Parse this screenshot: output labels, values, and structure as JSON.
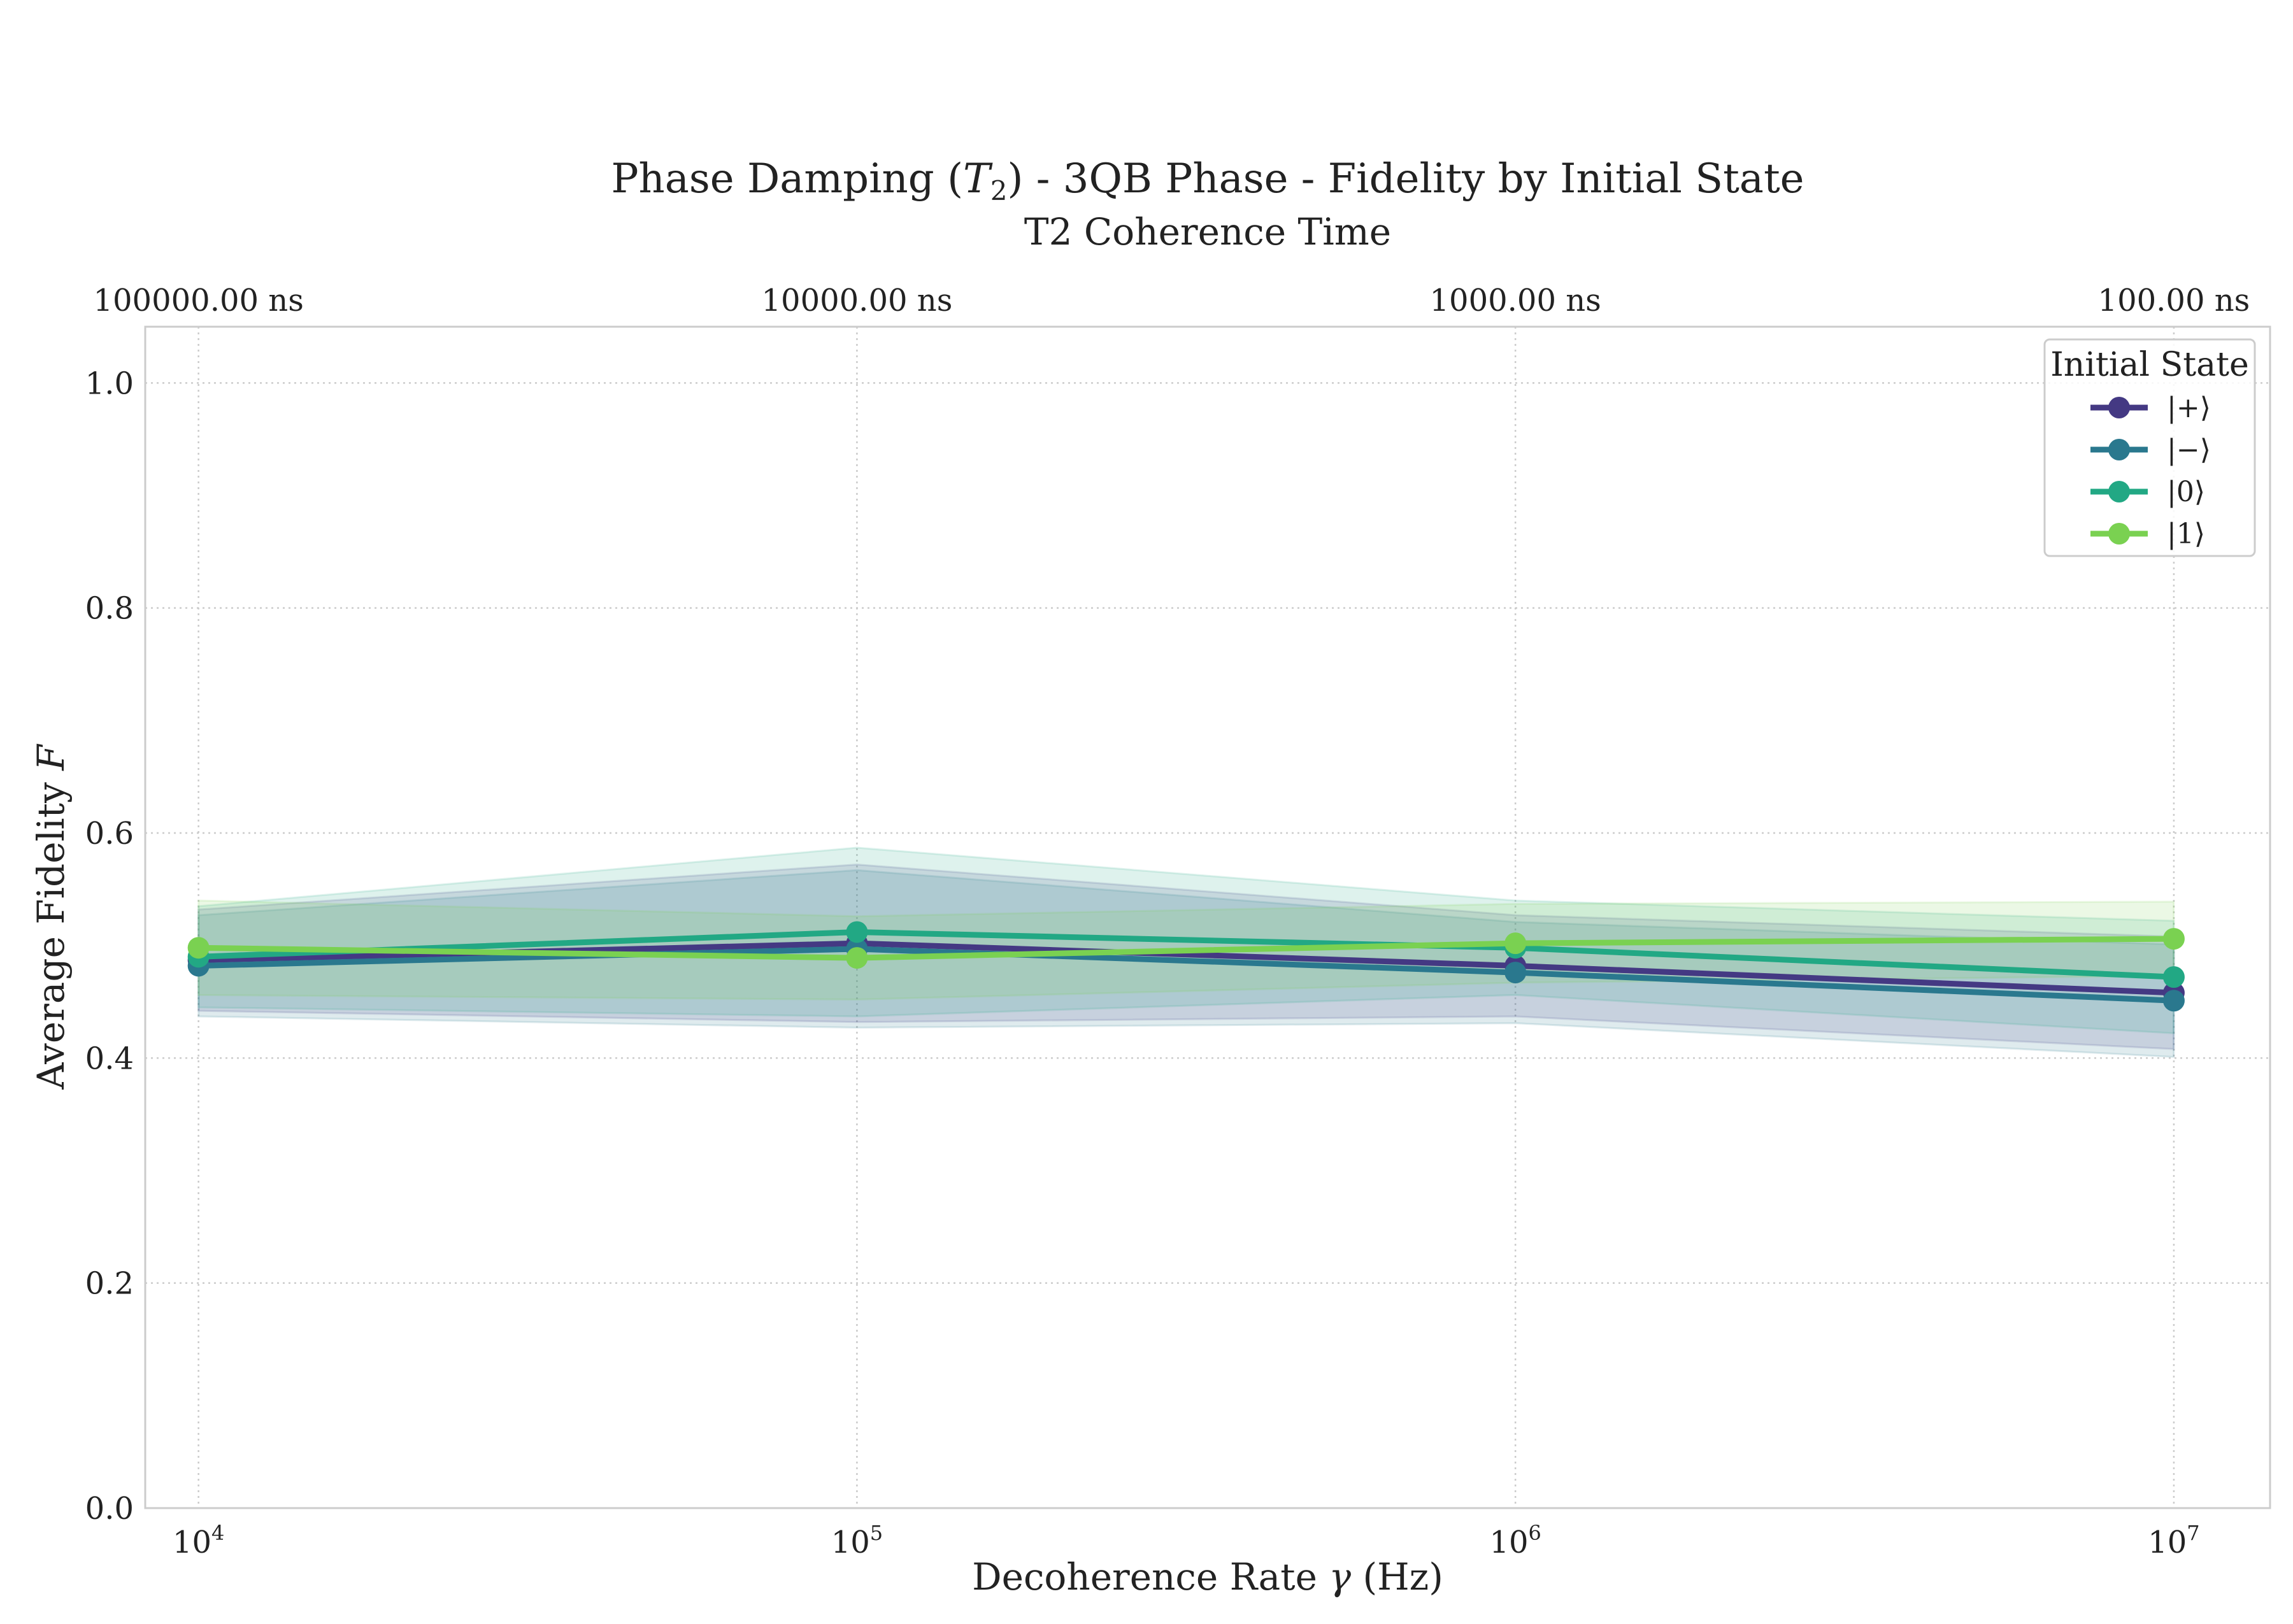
{
  "chart_data": {
    "type": "line",
    "title": "Phase Damping (T₂) - 3QB Phase - Fidelity by Initial State",
    "title_parts": {
      "before": "Phase Damping (",
      "symbol": "T",
      "subscript": "2",
      "after": ") - 3QB Phase - Fidelity by Initial State"
    },
    "secondary_axis_title": "T2 Coherence Time",
    "xlabel": "Decoherence Rate γ (Hz)",
    "xlabel_parts": {
      "before": "Decoherence Rate ",
      "symbol": "γ",
      "after": " (Hz)"
    },
    "ylabel": "Average Fidelity F",
    "ylabel_parts": {
      "before": "Average Fidelity ",
      "symbol": "F"
    },
    "x_scale": "log",
    "x": [
      10000,
      100000,
      1000000,
      10000000
    ],
    "xlim": [
      8300,
      14000000
    ],
    "ylim": [
      0,
      1.05
    ],
    "x_ticks": [
      {
        "base": "10",
        "exp": "4",
        "value": 10000
      },
      {
        "base": "10",
        "exp": "5",
        "value": 100000
      },
      {
        "base": "10",
        "exp": "6",
        "value": 1000000
      },
      {
        "base": "10",
        "exp": "7",
        "value": 10000000
      }
    ],
    "y_ticks": [
      "0.0",
      "0.2",
      "0.4",
      "0.6",
      "0.8",
      "1.0"
    ],
    "top_ticks": [
      "100000.00 ns",
      "10000.00 ns",
      "1000.00 ns",
      "100.00 ns"
    ],
    "grid": true,
    "grid_style": "dotted",
    "legend": {
      "title": "Initial State",
      "placement": "top-right"
    },
    "series": [
      {
        "name": "|+⟩",
        "color": "#443983",
        "values": [
          0.487,
          0.502,
          0.482,
          0.458
        ],
        "lower": [
          0.442,
          0.432,
          0.437,
          0.408
        ],
        "upper": [
          0.532,
          0.572,
          0.527,
          0.508
        ]
      },
      {
        "name": "|−⟩",
        "color": "#2a788e",
        "values": [
          0.482,
          0.497,
          0.476,
          0.451
        ],
        "lower": [
          0.437,
          0.427,
          0.431,
          0.401
        ],
        "upper": [
          0.527,
          0.567,
          0.521,
          0.501
        ]
      },
      {
        "name": "|0⟩",
        "color": "#22a884",
        "values": [
          0.49,
          0.512,
          0.498,
          0.472
        ],
        "lower": [
          0.445,
          0.437,
          0.456,
          0.422
        ],
        "upper": [
          0.535,
          0.587,
          0.54,
          0.522
        ]
      },
      {
        "name": "|1⟩",
        "color": "#7ad151",
        "values": [
          0.498,
          0.489,
          0.502,
          0.506
        ],
        "lower": [
          0.456,
          0.452,
          0.467,
          0.473
        ],
        "upper": [
          0.54,
          0.526,
          0.537,
          0.539
        ]
      }
    ]
  }
}
